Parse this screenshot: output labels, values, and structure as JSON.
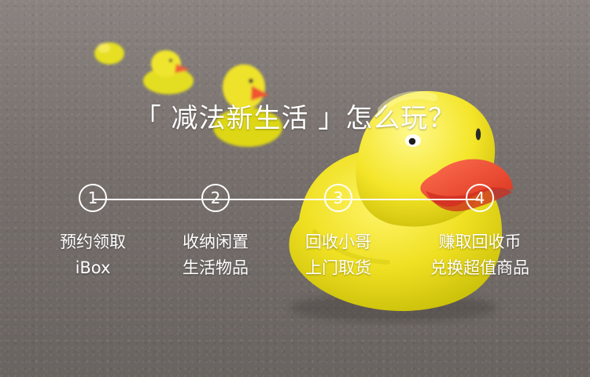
{
  "hero": {
    "title": "「 减法新生活 」怎么玩？"
  },
  "steps": [
    {
      "number": "1",
      "line1": "预约领取",
      "line2": "iBox"
    },
    {
      "number": "2",
      "line1": "收纳闲置",
      "line2": "生活物品"
    },
    {
      "number": "3",
      "line1": "回收小哥",
      "line2": "上门取货"
    },
    {
      "number": "4",
      "line1": "赚取回收币",
      "line2": "兑换超值商品"
    }
  ],
  "colors": {
    "text": "#ffffff",
    "duck_yellow": "#f3e21d",
    "duck_beak": "#f14b2b",
    "background": "#7b7371"
  }
}
